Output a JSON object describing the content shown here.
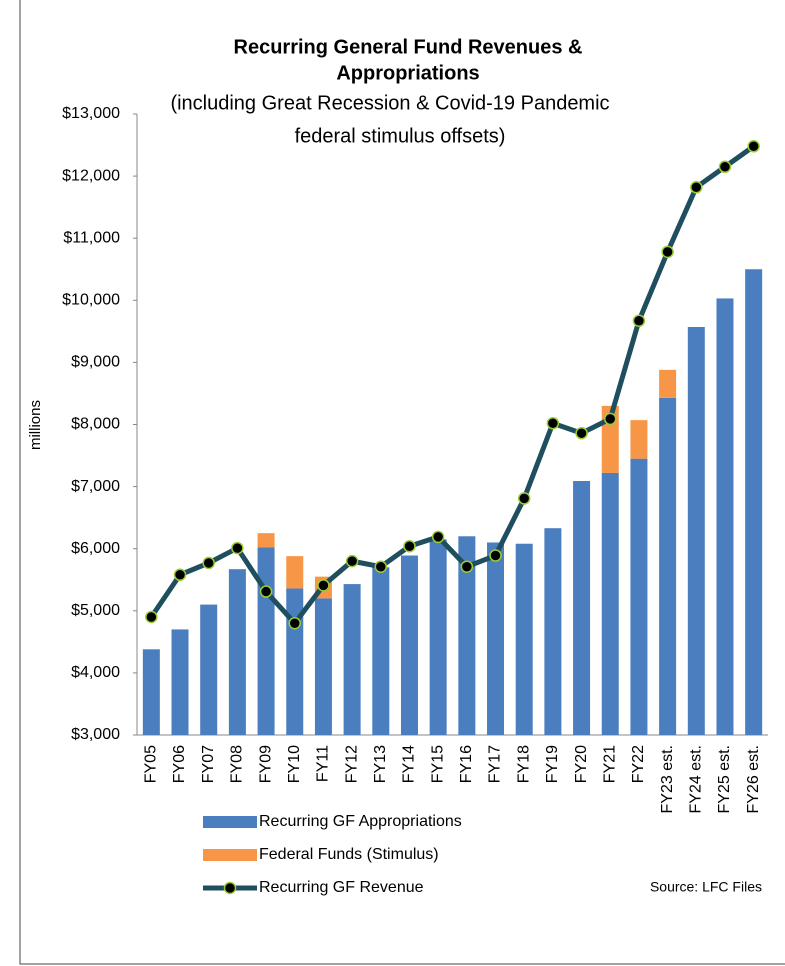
{
  "chart_data": {
    "type": "bar",
    "title": [
      "Recurring General Fund Revenues &",
      "Appropriations"
    ],
    "subtitle": [
      "(including Great Recession & Covid-19 Pandemic",
      "federal stimulus offsets)"
    ],
    "y_label": "millions",
    "source": "Source: LFC Files",
    "categories": [
      "FY05",
      "FY06",
      "FY07",
      "FY08",
      "FY09",
      "FY10",
      "FY11",
      "FY12",
      "FY13",
      "FY14",
      "FY15",
      "FY16",
      "FY17",
      "FY18",
      "FY19",
      "FY20",
      "FY21",
      "FY22",
      "FY23 est.",
      "FY24 est.",
      "FY25 est.",
      "FY26 est."
    ],
    "series": [
      {
        "name": "Recurring GF Appropriations",
        "color": "#4a7ebf",
        "stack": true,
        "values": [
          4380,
          4700,
          5100,
          5670,
          6020,
          5360,
          5200,
          5430,
          5700,
          5890,
          6150,
          6200,
          6100,
          6080,
          6330,
          7090,
          7220,
          7450,
          8430,
          9570,
          10030,
          10500
        ]
      },
      {
        "name": "Federal Funds (Stimulus)",
        "color": "#f79646",
        "stack": true,
        "values": [
          0,
          0,
          0,
          0,
          230,
          520,
          350,
          0,
          0,
          0,
          0,
          0,
          0,
          0,
          0,
          0,
          1080,
          620,
          450,
          0,
          0,
          0
        ]
      },
      {
        "name": "Recurring GF Revenue",
        "color": "#1f4e5f",
        "type": "line",
        "marker_color": "#9acd32",
        "values": [
          4900,
          5580,
          5770,
          6010,
          5310,
          4800,
          5410,
          5800,
          5710,
          6040,
          6190,
          5710,
          5890,
          6810,
          8020,
          7860,
          8090,
          9670,
          10780,
          11820,
          12150,
          12480
        ]
      }
    ],
    "ylim": [
      3000,
      13000
    ],
    "yticks": [
      {
        "value": 3000,
        "label": "$3,000"
      },
      {
        "value": 4000,
        "label": "$4,000"
      },
      {
        "value": 5000,
        "label": "$5,000"
      },
      {
        "value": 6000,
        "label": "$6,000"
      },
      {
        "value": 7000,
        "label": "$7,000"
      },
      {
        "value": 8000,
        "label": "$8,000"
      },
      {
        "value": 9000,
        "label": "$9,000"
      },
      {
        "value": 10000,
        "label": "$10,000"
      },
      {
        "value": 11000,
        "label": "$11,000"
      },
      {
        "value": 12000,
        "label": "$12,000"
      },
      {
        "value": 13000,
        "label": "$13,000"
      }
    ],
    "grid": false
  }
}
